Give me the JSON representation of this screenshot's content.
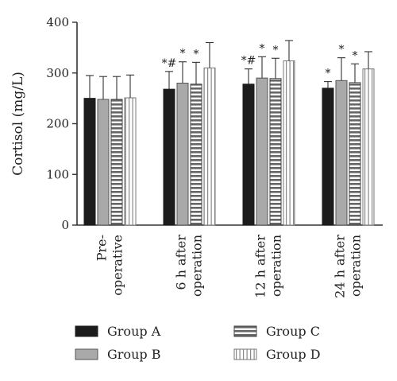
{
  "chart_data": {
    "type": "bar",
    "ylabel": "Cortisol (mg/L)",
    "ylim": [
      0,
      400
    ],
    "yticks": [
      0,
      100,
      200,
      300,
      400
    ],
    "categories": [
      {
        "lines": [
          "Pre-",
          "operative"
        ]
      },
      {
        "lines": [
          "6 h after",
          "operation"
        ]
      },
      {
        "lines": [
          "12 h after",
          "operation"
        ]
      },
      {
        "lines": [
          "24 h after",
          "operation"
        ]
      }
    ],
    "series": [
      {
        "name": "Group A",
        "pattern": "solid-dark",
        "values": [
          250,
          268,
          278,
          270
        ],
        "errors": [
          45,
          35,
          30,
          13
        ],
        "annotations": [
          "",
          "*#",
          "*#",
          "*"
        ]
      },
      {
        "name": "Group B",
        "pattern": "solid-gray",
        "values": [
          248,
          280,
          290,
          285
        ],
        "errors": [
          45,
          42,
          42,
          45
        ],
        "annotations": [
          "",
          "*",
          "*",
          "*"
        ]
      },
      {
        "name": "Group C",
        "pattern": "horizontal-stripes",
        "values": [
          248,
          278,
          289,
          281
        ],
        "errors": [
          45,
          43,
          40,
          37
        ],
        "annotations": [
          "",
          "*",
          "*",
          "*"
        ]
      },
      {
        "name": "Group D",
        "pattern": "vertical-stripes",
        "values": [
          251,
          310,
          324,
          308
        ],
        "errors": [
          45,
          50,
          40,
          34
        ],
        "annotations": [
          "",
          "",
          "",
          ""
        ]
      }
    ],
    "legend_position": "bottom",
    "grid": false,
    "colors": {
      "dark": "#1c1c1c",
      "gray": "#a9a9a9",
      "light": "#e6e6e6",
      "axis": "#333333"
    }
  }
}
